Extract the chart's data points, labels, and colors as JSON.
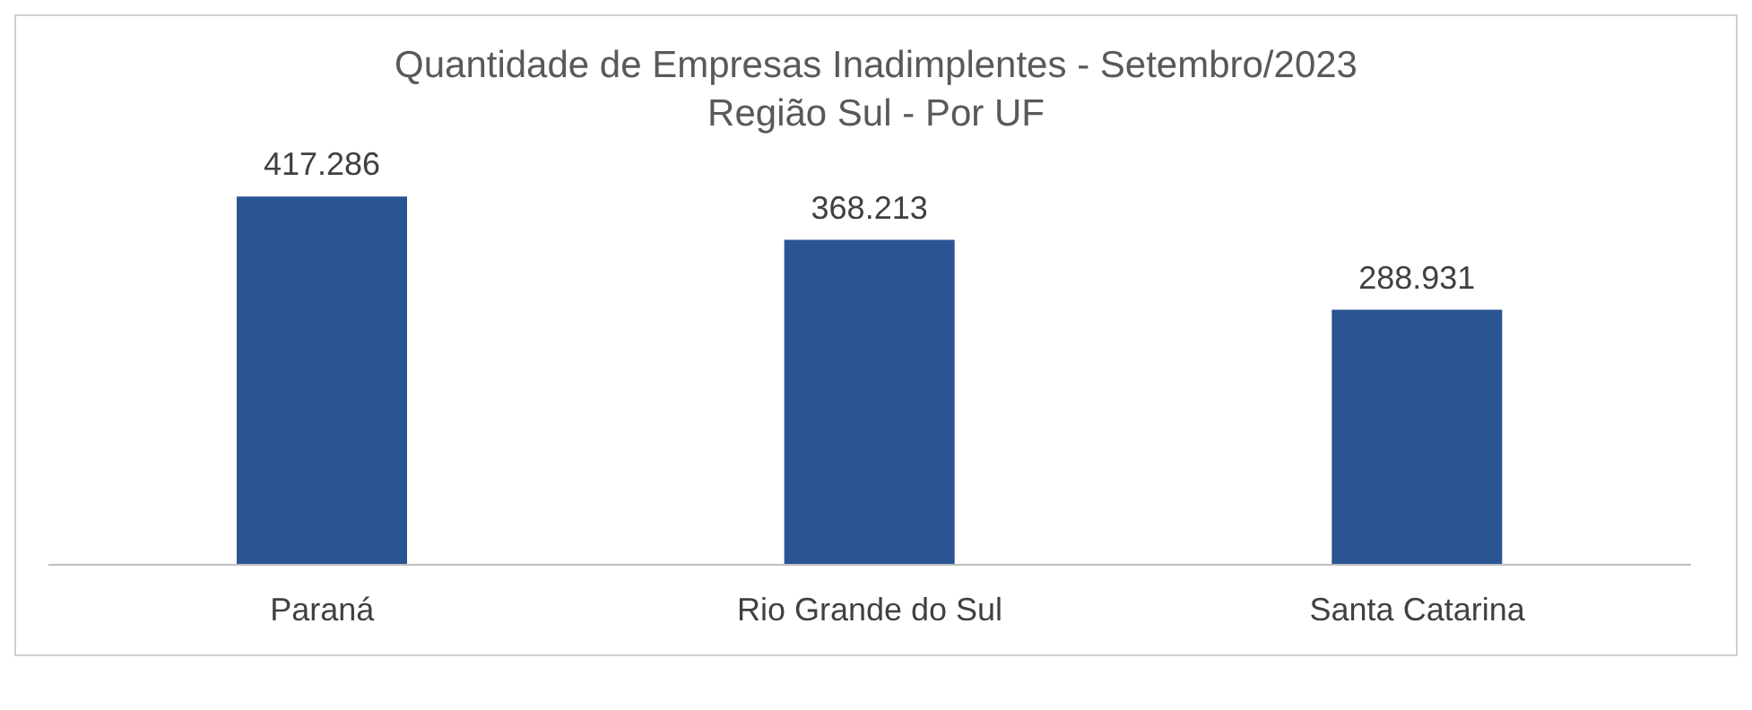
{
  "chart_data": {
    "type": "bar",
    "title": "Quantidade de Empresas Inadimplentes - Setembro/2023",
    "subtitle": "Região Sul - Por UF",
    "categories": [
      "Paraná",
      "Rio Grande do Sul",
      "Santa Catarina"
    ],
    "values": [
      417286,
      368213,
      288931
    ],
    "color": "#2a5592",
    "value_labels": [
      "417.286",
      "368.213",
      "288.931"
    ],
    "grid": false,
    "legend": false
  }
}
